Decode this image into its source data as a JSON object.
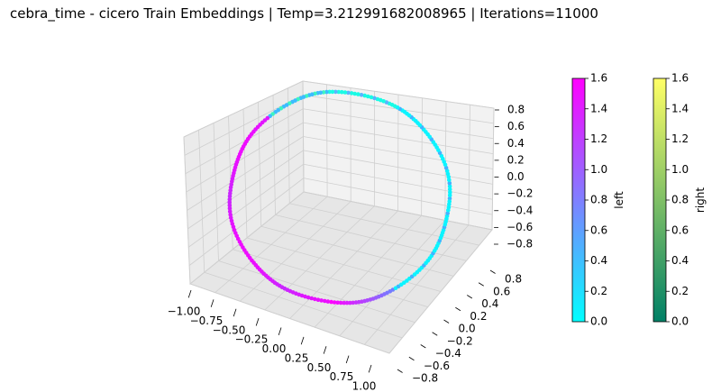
{
  "title": "cebra_time - cicero Train Embeddings | Temp=3.212991682008965 | Iterations=11000",
  "chart_data": {
    "type": "scatter",
    "projection": "3d",
    "title": "cebra_time - cicero Train Embeddings | Temp=3.212991682008965 | Iterations=11000",
    "x_ticks": [
      "−1.00",
      "−0.75",
      "−0.50",
      "−0.25",
      "0.00",
      "0.25",
      "0.50",
      "0.75",
      "1.00"
    ],
    "y_ticks": [
      "−0.8",
      "−0.6",
      "−0.4",
      "−0.2",
      "0.0",
      "0.2",
      "0.4",
      "0.6",
      "0.8"
    ],
    "z_ticks": [
      "−0.8",
      "−0.6",
      "−0.4",
      "−0.2",
      "0.0",
      "0.2",
      "0.4",
      "0.6",
      "0.8"
    ],
    "xlim": [
      -1.0,
      1.0
    ],
    "ylim": [
      -0.9,
      0.9
    ],
    "zlim": [
      -0.9,
      0.9
    ],
    "grid": true,
    "shape": "unit ring of points (embedding on a circle)",
    "series": [
      {
        "name": "left",
        "colormap": "cool",
        "colors": [
          "#00ffff",
          "#ff00ff"
        ]
      },
      {
        "name": "right",
        "colormap": "summer",
        "colors": [
          "#008066",
          "#ffff66"
        ]
      }
    ],
    "colorbars": [
      {
        "label": "left",
        "range": [
          0.0,
          1.6
        ],
        "ticks": [
          "0.0",
          "0.2",
          "0.4",
          "0.6",
          "0.8",
          "1.0",
          "1.2",
          "1.4",
          "1.6"
        ],
        "colors": [
          "#00ffff",
          "#ff00ff"
        ]
      },
      {
        "label": "right",
        "range": [
          0.0,
          1.6
        ],
        "ticks": [
          "0.0",
          "0.2",
          "0.4",
          "0.6",
          "0.8",
          "1.0",
          "1.2",
          "1.4",
          "1.6"
        ],
        "colors": [
          "#008066",
          "#ffff66"
        ]
      }
    ]
  }
}
